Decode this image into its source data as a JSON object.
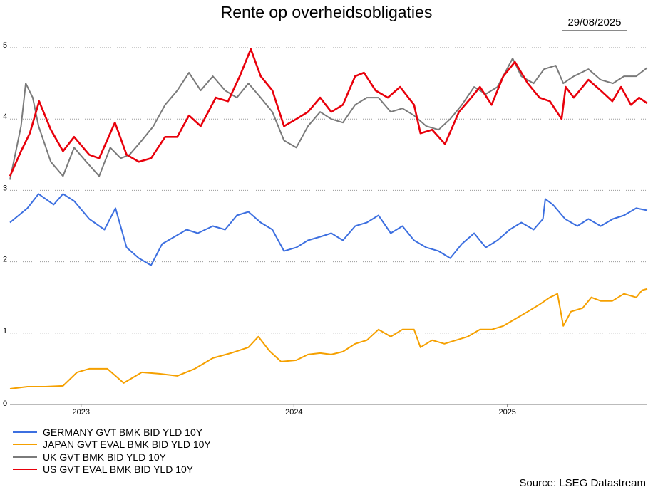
{
  "header": {
    "title": "Rente op overheidsobligaties",
    "date": "29/08/2025"
  },
  "footer": {
    "source": "Source: LSEG Datastream"
  },
  "chart_data": {
    "type": "line",
    "title": "Rente op overheidsobligaties",
    "xlabel": "",
    "ylabel": "",
    "x_range": [
      "2022-09-01",
      "2025-08-29"
    ],
    "ylim": [
      0,
      5
    ],
    "y_ticks": [
      0,
      1,
      2,
      3,
      4,
      5
    ],
    "x_ticks": [
      {
        "label": "2023",
        "date": "2023-01-01"
      },
      {
        "label": "2024",
        "date": "2024-01-01"
      },
      {
        "label": "2025",
        "date": "2025-01-01"
      }
    ],
    "grid": "horizontal dotted",
    "legend_position": "bottom-left",
    "series": [
      {
        "name": "GERMANY GVT BMK BID YLD 10Y",
        "color": "#3c6fe0",
        "points": [
          [
            "2022-09-01",
            2.55
          ],
          [
            "2022-10-01",
            2.75
          ],
          [
            "2022-10-20",
            2.95
          ],
          [
            "2022-11-15",
            2.8
          ],
          [
            "2022-12-01",
            2.95
          ],
          [
            "2022-12-20",
            2.85
          ],
          [
            "2023-01-15",
            2.6
          ],
          [
            "2023-02-10",
            2.45
          ],
          [
            "2023-03-01",
            2.75
          ],
          [
            "2023-03-20",
            2.2
          ],
          [
            "2023-04-10",
            2.05
          ],
          [
            "2023-05-01",
            1.95
          ],
          [
            "2023-05-20",
            2.25
          ],
          [
            "2023-06-10",
            2.35
          ],
          [
            "2023-07-01",
            2.45
          ],
          [
            "2023-07-20",
            2.4
          ],
          [
            "2023-08-15",
            2.5
          ],
          [
            "2023-09-05",
            2.45
          ],
          [
            "2023-09-25",
            2.65
          ],
          [
            "2023-10-15",
            2.7
          ],
          [
            "2023-11-05",
            2.55
          ],
          [
            "2023-11-25",
            2.45
          ],
          [
            "2023-12-15",
            2.15
          ],
          [
            "2024-01-05",
            2.2
          ],
          [
            "2024-01-25",
            2.3
          ],
          [
            "2024-02-15",
            2.35
          ],
          [
            "2024-03-05",
            2.4
          ],
          [
            "2024-03-25",
            2.3
          ],
          [
            "2024-04-15",
            2.5
          ],
          [
            "2024-05-05",
            2.55
          ],
          [
            "2024-05-25",
            2.65
          ],
          [
            "2024-06-15",
            2.4
          ],
          [
            "2024-07-05",
            2.5
          ],
          [
            "2024-07-25",
            2.3
          ],
          [
            "2024-08-15",
            2.2
          ],
          [
            "2024-09-05",
            2.15
          ],
          [
            "2024-09-25",
            2.05
          ],
          [
            "2024-10-15",
            2.25
          ],
          [
            "2024-11-05",
            2.4
          ],
          [
            "2024-11-25",
            2.2
          ],
          [
            "2024-12-15",
            2.3
          ],
          [
            "2025-01-05",
            2.45
          ],
          [
            "2025-01-25",
            2.55
          ],
          [
            "2025-02-15",
            2.45
          ],
          [
            "2025-03-03",
            2.6
          ],
          [
            "2025-03-07",
            2.88
          ],
          [
            "2025-03-20",
            2.8
          ],
          [
            "2025-04-10",
            2.6
          ],
          [
            "2025-05-01",
            2.5
          ],
          [
            "2025-05-20",
            2.6
          ],
          [
            "2025-06-10",
            2.5
          ],
          [
            "2025-07-01",
            2.6
          ],
          [
            "2025-07-20",
            2.65
          ],
          [
            "2025-08-10",
            2.75
          ],
          [
            "2025-08-29",
            2.72
          ]
        ]
      },
      {
        "name": "JAPAN GVT EVAL BMK BID YLD 10Y",
        "color": "#f5a000",
        "points": [
          [
            "2022-09-01",
            0.22
          ],
          [
            "2022-10-01",
            0.25
          ],
          [
            "2022-11-01",
            0.25
          ],
          [
            "2022-12-01",
            0.26
          ],
          [
            "2022-12-25",
            0.45
          ],
          [
            "2023-01-15",
            0.5
          ],
          [
            "2023-02-15",
            0.5
          ],
          [
            "2023-03-15",
            0.3
          ],
          [
            "2023-04-15",
            0.45
          ],
          [
            "2023-05-15",
            0.43
          ],
          [
            "2023-06-15",
            0.4
          ],
          [
            "2023-07-15",
            0.5
          ],
          [
            "2023-08-15",
            0.65
          ],
          [
            "2023-09-15",
            0.72
          ],
          [
            "2023-10-15",
            0.8
          ],
          [
            "2023-11-01",
            0.95
          ],
          [
            "2023-11-20",
            0.75
          ],
          [
            "2023-12-10",
            0.6
          ],
          [
            "2024-01-05",
            0.62
          ],
          [
            "2024-01-25",
            0.7
          ],
          [
            "2024-02-15",
            0.72
          ],
          [
            "2024-03-05",
            0.7
          ],
          [
            "2024-03-25",
            0.74
          ],
          [
            "2024-04-15",
            0.85
          ],
          [
            "2024-05-05",
            0.9
          ],
          [
            "2024-05-25",
            1.05
          ],
          [
            "2024-06-15",
            0.95
          ],
          [
            "2024-07-05",
            1.05
          ],
          [
            "2024-07-25",
            1.05
          ],
          [
            "2024-08-05",
            0.8
          ],
          [
            "2024-08-25",
            0.9
          ],
          [
            "2024-09-15",
            0.85
          ],
          [
            "2024-10-05",
            0.9
          ],
          [
            "2024-10-25",
            0.95
          ],
          [
            "2024-11-15",
            1.05
          ],
          [
            "2024-12-05",
            1.05
          ],
          [
            "2024-12-25",
            1.1
          ],
          [
            "2025-01-15",
            1.2
          ],
          [
            "2025-02-05",
            1.3
          ],
          [
            "2025-02-25",
            1.4
          ],
          [
            "2025-03-15",
            1.5
          ],
          [
            "2025-03-28",
            1.55
          ],
          [
            "2025-04-07",
            1.1
          ],
          [
            "2025-04-20",
            1.3
          ],
          [
            "2025-05-10",
            1.35
          ],
          [
            "2025-05-25",
            1.5
          ],
          [
            "2025-06-10",
            1.45
          ],
          [
            "2025-06-30",
            1.45
          ],
          [
            "2025-07-20",
            1.55
          ],
          [
            "2025-08-10",
            1.5
          ],
          [
            "2025-08-20",
            1.6
          ],
          [
            "2025-08-29",
            1.62
          ]
        ]
      },
      {
        "name": "UK GVT BMK BID YLD 10Y",
        "color": "#7a7a7a",
        "points": [
          [
            "2022-09-01",
            3.15
          ],
          [
            "2022-09-20",
            3.9
          ],
          [
            "2022-09-28",
            4.5
          ],
          [
            "2022-10-10",
            4.3
          ],
          [
            "2022-10-20",
            3.9
          ],
          [
            "2022-11-10",
            3.4
          ],
          [
            "2022-12-01",
            3.2
          ],
          [
            "2022-12-20",
            3.6
          ],
          [
            "2023-01-10",
            3.4
          ],
          [
            "2023-02-01",
            3.2
          ],
          [
            "2023-02-20",
            3.6
          ],
          [
            "2023-03-10",
            3.45
          ],
          [
            "2023-03-25",
            3.5
          ],
          [
            "2023-04-15",
            3.7
          ],
          [
            "2023-05-05",
            3.9
          ],
          [
            "2023-05-25",
            4.2
          ],
          [
            "2023-06-15",
            4.4
          ],
          [
            "2023-07-05",
            4.65
          ],
          [
            "2023-07-25",
            4.4
          ],
          [
            "2023-08-15",
            4.6
          ],
          [
            "2023-09-05",
            4.4
          ],
          [
            "2023-09-25",
            4.3
          ],
          [
            "2023-10-15",
            4.5
          ],
          [
            "2023-11-05",
            4.3
          ],
          [
            "2023-11-25",
            4.1
          ],
          [
            "2023-12-15",
            3.7
          ],
          [
            "2024-01-05",
            3.6
          ],
          [
            "2024-01-25",
            3.9
          ],
          [
            "2024-02-15",
            4.1
          ],
          [
            "2024-03-05",
            4.0
          ],
          [
            "2024-03-25",
            3.95
          ],
          [
            "2024-04-15",
            4.2
          ],
          [
            "2024-05-05",
            4.3
          ],
          [
            "2024-05-25",
            4.3
          ],
          [
            "2024-06-15",
            4.1
          ],
          [
            "2024-07-05",
            4.15
          ],
          [
            "2024-07-25",
            4.05
          ],
          [
            "2024-08-15",
            3.9
          ],
          [
            "2024-09-05",
            3.85
          ],
          [
            "2024-09-25",
            4.0
          ],
          [
            "2024-10-15",
            4.2
          ],
          [
            "2024-11-05",
            4.45
          ],
          [
            "2024-11-25",
            4.35
          ],
          [
            "2024-12-15",
            4.45
          ],
          [
            "2025-01-10",
            4.85
          ],
          [
            "2025-01-25",
            4.6
          ],
          [
            "2025-02-15",
            4.5
          ],
          [
            "2025-03-05",
            4.7
          ],
          [
            "2025-03-25",
            4.75
          ],
          [
            "2025-04-07",
            4.5
          ],
          [
            "2025-04-25",
            4.6
          ],
          [
            "2025-05-20",
            4.7
          ],
          [
            "2025-06-10",
            4.55
          ],
          [
            "2025-07-01",
            4.5
          ],
          [
            "2025-07-20",
            4.6
          ],
          [
            "2025-08-10",
            4.6
          ],
          [
            "2025-08-29",
            4.72
          ]
        ]
      },
      {
        "name": "US GVT EVAL BMK BID YLD 10Y",
        "color": "#e8000b",
        "points": [
          [
            "2022-09-01",
            3.2
          ],
          [
            "2022-09-20",
            3.55
          ],
          [
            "2022-10-05",
            3.8
          ],
          [
            "2022-10-21",
            4.25
          ],
          [
            "2022-11-10",
            3.85
          ],
          [
            "2022-12-01",
            3.55
          ],
          [
            "2022-12-20",
            3.75
          ],
          [
            "2023-01-15",
            3.5
          ],
          [
            "2023-02-01",
            3.45
          ],
          [
            "2023-02-28",
            3.95
          ],
          [
            "2023-03-20",
            3.5
          ],
          [
            "2023-04-10",
            3.4
          ],
          [
            "2023-05-01",
            3.45
          ],
          [
            "2023-05-25",
            3.75
          ],
          [
            "2023-06-15",
            3.75
          ],
          [
            "2023-07-05",
            4.05
          ],
          [
            "2023-07-25",
            3.9
          ],
          [
            "2023-08-20",
            4.3
          ],
          [
            "2023-09-10",
            4.25
          ],
          [
            "2023-09-30",
            4.6
          ],
          [
            "2023-10-19",
            4.98
          ],
          [
            "2023-11-05",
            4.6
          ],
          [
            "2023-11-25",
            4.4
          ],
          [
            "2023-12-15",
            3.9
          ],
          [
            "2024-01-05",
            4.0
          ],
          [
            "2024-01-25",
            4.1
          ],
          [
            "2024-02-15",
            4.3
          ],
          [
            "2024-03-05",
            4.1
          ],
          [
            "2024-03-25",
            4.2
          ],
          [
            "2024-04-15",
            4.6
          ],
          [
            "2024-04-30",
            4.65
          ],
          [
            "2024-05-20",
            4.4
          ],
          [
            "2024-06-10",
            4.3
          ],
          [
            "2024-07-01",
            4.45
          ],
          [
            "2024-07-25",
            4.2
          ],
          [
            "2024-08-05",
            3.8
          ],
          [
            "2024-08-25",
            3.85
          ],
          [
            "2024-09-16",
            3.65
          ],
          [
            "2024-10-10",
            4.1
          ],
          [
            "2024-10-31",
            4.3
          ],
          [
            "2024-11-15",
            4.45
          ],
          [
            "2024-12-05",
            4.2
          ],
          [
            "2024-12-25",
            4.6
          ],
          [
            "2025-01-14",
            4.8
          ],
          [
            "2025-02-05",
            4.5
          ],
          [
            "2025-02-25",
            4.3
          ],
          [
            "2025-03-15",
            4.25
          ],
          [
            "2025-04-04",
            4.0
          ],
          [
            "2025-04-11",
            4.45
          ],
          [
            "2025-04-25",
            4.3
          ],
          [
            "2025-05-20",
            4.55
          ],
          [
            "2025-06-10",
            4.4
          ],
          [
            "2025-06-30",
            4.25
          ],
          [
            "2025-07-15",
            4.45
          ],
          [
            "2025-08-01",
            4.2
          ],
          [
            "2025-08-15",
            4.3
          ],
          [
            "2025-08-29",
            4.22
          ]
        ]
      }
    ]
  }
}
